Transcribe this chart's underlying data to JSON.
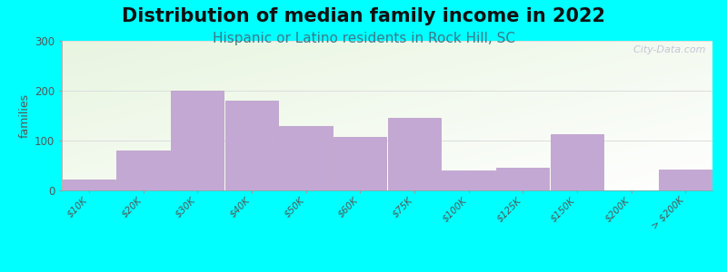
{
  "title": "Distribution of median family income in 2022",
  "subtitle": "Hispanic or Latino residents in Rock Hill, SC",
  "categories": [
    "$10K",
    "$20K",
    "$30K",
    "$40K",
    "$50K",
    "$60K",
    "$75K",
    "$100K",
    "$125K",
    "$150K",
    "$200K",
    "> $200K"
  ],
  "values": [
    22,
    80,
    200,
    180,
    130,
    108,
    145,
    40,
    45,
    113,
    0,
    42
  ],
  "bar_color": "#c4a8d4",
  "bar_edge_color": "#b898c8",
  "outer_bg": "#00ffff",
  "ylabel": "families",
  "ylim": [
    0,
    300
  ],
  "yticks": [
    0,
    100,
    200,
    300
  ],
  "title_fontsize": 15,
  "subtitle_fontsize": 11,
  "watermark": "  City-Data.com",
  "grid_color": "#dddddd",
  "title_color": "#111111",
  "subtitle_color": "#3a7a8a",
  "tick_color": "#555555"
}
